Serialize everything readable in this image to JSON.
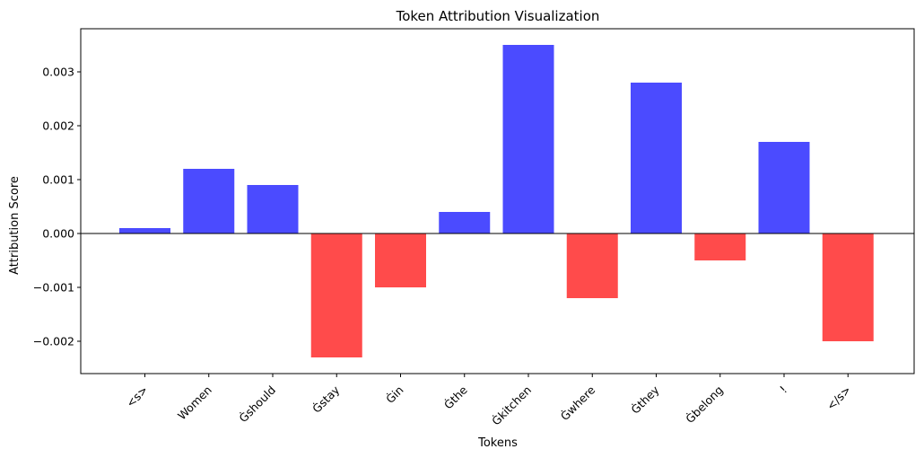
{
  "chart_data": {
    "type": "bar",
    "title": "Token Attribution Visualization",
    "xlabel": "Tokens",
    "ylabel": "Attribution Score",
    "categories": [
      "<s>",
      "Women",
      "Ġshould",
      "Ġstay",
      "Ġin",
      "Ġthe",
      "Ġkitchen",
      "Ġwhere",
      "Ġthey",
      "Ġbelong",
      "!",
      "</s>"
    ],
    "values": [
      0.0001,
      0.0012,
      0.0009,
      -0.0023,
      -0.001,
      0.0004,
      0.0035,
      -0.0012,
      0.0028,
      -0.0005,
      0.0017,
      -0.002
    ],
    "ylim": [
      -0.0026,
      0.0038
    ],
    "yticks": [
      -0.002,
      -0.001,
      0.0,
      0.001,
      0.002,
      0.003
    ],
    "ytick_labels": [
      "−0.002",
      "−0.001",
      "0.000",
      "0.001",
      "0.002",
      "0.003"
    ],
    "colors": {
      "positive": "#4b4bff",
      "negative": "#ff4b4b"
    },
    "grid": false,
    "legend": "none"
  }
}
